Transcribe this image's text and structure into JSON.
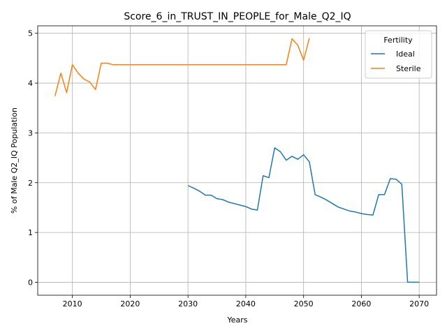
{
  "chart_data": {
    "type": "line",
    "title": "Score_6_in_TRUST_IN_PEOPLE_for_Male_Q2_IQ",
    "xlabel": "Years",
    "ylabel": "% of Male Q2_IQ Population",
    "xlim": [
      2004,
      2073
    ],
    "ylim": [
      -0.26,
      5.15
    ],
    "xticks": [
      2010,
      2020,
      2030,
      2040,
      2050,
      2060,
      2070
    ],
    "yticks": [
      0,
      1,
      2,
      3,
      4,
      5
    ],
    "grid": true,
    "legend": {
      "title": "Fertility",
      "placement": "top-right"
    },
    "colors": {
      "Ideal": "#1f77b4",
      "Sterile": "#ff7f0e"
    },
    "series": [
      {
        "name": "Ideal",
        "x": [
          2030,
          2031,
          2032,
          2033,
          2034,
          2035,
          2036,
          2037,
          2038,
          2039,
          2040,
          2041,
          2042,
          2043,
          2044,
          2045,
          2046,
          2047,
          2048,
          2049,
          2050,
          2051,
          2052,
          2053,
          2054,
          2055,
          2056,
          2057,
          2058,
          2059,
          2060,
          2061,
          2062,
          2063,
          2064,
          2065,
          2066,
          2067,
          2068,
          2069,
          2070
        ],
        "y": [
          1.94,
          1.89,
          1.83,
          1.75,
          1.75,
          1.68,
          1.66,
          1.61,
          1.58,
          1.55,
          1.52,
          1.47,
          1.45,
          2.14,
          2.1,
          2.7,
          2.62,
          2.45,
          2.53,
          2.47,
          2.56,
          2.42,
          1.76,
          1.71,
          1.65,
          1.58,
          1.51,
          1.47,
          1.43,
          1.41,
          1.38,
          1.36,
          1.35,
          1.76,
          1.76,
          2.08,
          2.07,
          1.97,
          0.0,
          0.0,
          0.0
        ]
      },
      {
        "name": "Sterile",
        "x": [
          2007,
          2008,
          2009,
          2010,
          2011,
          2012,
          2013,
          2014,
          2015,
          2016,
          2017,
          2018,
          2019,
          2020,
          2021,
          2022,
          2023,
          2024,
          2025,
          2026,
          2027,
          2028,
          2029,
          2030,
          2031,
          2032,
          2033,
          2034,
          2035,
          2036,
          2037,
          2038,
          2039,
          2040,
          2041,
          2042,
          2043,
          2044,
          2045,
          2046,
          2047,
          2048,
          2049,
          2050,
          2051
        ],
        "y": [
          3.74,
          4.2,
          3.81,
          4.37,
          4.2,
          4.08,
          4.02,
          3.87,
          4.4,
          4.4,
          4.37,
          4.37,
          4.37,
          4.37,
          4.37,
          4.37,
          4.37,
          4.37,
          4.37,
          4.37,
          4.37,
          4.37,
          4.37,
          4.37,
          4.37,
          4.37,
          4.37,
          4.37,
          4.37,
          4.37,
          4.37,
          4.37,
          4.37,
          4.37,
          4.37,
          4.37,
          4.37,
          4.37,
          4.37,
          4.37,
          4.37,
          4.89,
          4.76,
          4.46,
          4.9
        ]
      }
    ]
  }
}
